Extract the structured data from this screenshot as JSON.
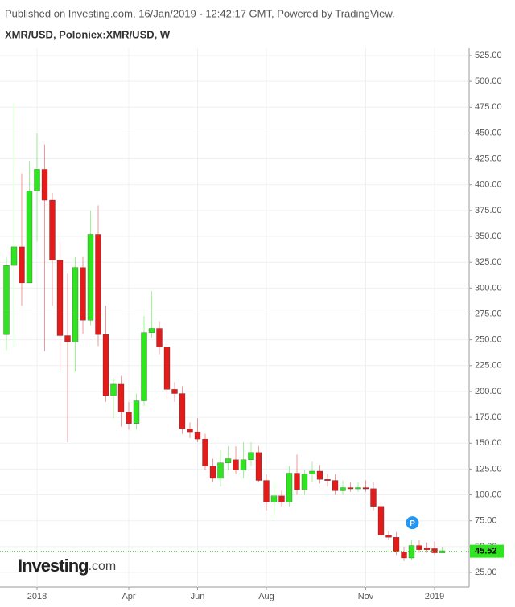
{
  "chart_data": {
    "type": "candlestick",
    "header": "Published on Investing.com, 16/Jan/2019 - 12:42:17 GMT, Powered by TradingView.",
    "title": "XMR/USD, Poloniex:XMR/USD, W",
    "watermark": "Investing",
    "watermark_suffix": ".com",
    "marker": "P",
    "categories": [
      null,
      null,
      null,
      null,
      "2018",
      null,
      null,
      null,
      null,
      null,
      null,
      null,
      null,
      null,
      null,
      null,
      "Apr",
      null,
      null,
      null,
      null,
      null,
      null,
      null,
      null,
      "Jun",
      null,
      null,
      null,
      null,
      null,
      null,
      null,
      null,
      "Aug",
      null,
      null,
      null,
      null,
      null,
      null,
      null,
      null,
      null,
      null,
      null,
      null,
      "Nov",
      null,
      null,
      null,
      null,
      null,
      null,
      null,
      null,
      "2019",
      null
    ],
    "open": [
      255,
      322,
      340,
      305,
      394,
      415,
      385,
      327,
      254,
      248,
      320,
      269,
      352,
      255,
      196,
      207,
      180,
      169,
      191,
      257,
      261,
      243,
      202,
      198,
      164,
      161,
      154,
      128,
      116,
      131,
      134,
      124,
      134,
      141,
      114,
      93,
      99,
      93,
      121,
      105,
      120,
      123,
      115,
      114,
      104,
      107,
      106,
      107,
      106,
      89,
      61,
      59,
      45,
      39,
      51,
      49,
      48,
      44
    ],
    "high": [
      330,
      479,
      411,
      423,
      450,
      439,
      392,
      345,
      314,
      330,
      330,
      375,
      380,
      283,
      213,
      215,
      190,
      198,
      273,
      297,
      268,
      246,
      209,
      205,
      170,
      174,
      159,
      135,
      143,
      147,
      147,
      151,
      151,
      147,
      120,
      112,
      104,
      128,
      139,
      124,
      132,
      129,
      120,
      120,
      114,
      112,
      112,
      114,
      112,
      93,
      65,
      64,
      50,
      56,
      56,
      54,
      55,
      50
    ],
    "low": [
      240,
      244,
      283,
      305,
      345,
      239,
      283,
      221,
      151,
      219,
      256,
      264,
      244,
      190,
      174,
      166,
      163,
      163,
      186,
      252,
      236,
      193,
      190,
      159,
      155,
      151,
      124,
      112,
      108,
      124,
      120,
      116,
      128,
      112,
      85,
      77,
      89,
      89,
      100,
      100,
      112,
      111,
      108,
      100,
      100,
      103,
      103,
      103,
      85,
      59,
      56,
      42,
      36,
      37,
      44,
      44,
      42,
      44
    ],
    "close": [
      322,
      340,
      305,
      394,
      415,
      385,
      327,
      254,
      248,
      320,
      269,
      352,
      255,
      196,
      207,
      180,
      169,
      191,
      257,
      261,
      243,
      202,
      198,
      164,
      161,
      154,
      128,
      116,
      131,
      135,
      124,
      134,
      141,
      114,
      93,
      99,
      93,
      121,
      105,
      120,
      123,
      115,
      114,
      104,
      107,
      106,
      107,
      106,
      89,
      61,
      59,
      45,
      39,
      51,
      47,
      47,
      44,
      46
    ],
    "up_color": "#2ee51f",
    "down_color": "#e31b1b",
    "last_price": 45.52,
    "last_price_color": "#2ee51f",
    "ylim": [
      11,
      532
    ],
    "yticks": [
      {
        "value": 25,
        "label": "25.00"
      },
      {
        "value": 50,
        "label": "50.00"
      },
      {
        "value": 75,
        "label": "75.00"
      },
      {
        "value": 100,
        "label": "100.00"
      },
      {
        "value": 125,
        "label": "125.00"
      },
      {
        "value": 150,
        "label": "150.00"
      },
      {
        "value": 175,
        "label": "175.00"
      },
      {
        "value": 200,
        "label": "200.00"
      },
      {
        "value": 225,
        "label": "225.00"
      },
      {
        "value": 250,
        "label": "250.00"
      },
      {
        "value": 275,
        "label": "275.00"
      },
      {
        "value": 300,
        "label": "300.00"
      },
      {
        "value": 325,
        "label": "325.00"
      },
      {
        "value": 350,
        "label": "350.00"
      },
      {
        "value": 375,
        "label": "375.00"
      },
      {
        "value": 400,
        "label": "400.00"
      },
      {
        "value": 425,
        "label": "425.00"
      },
      {
        "value": 450,
        "label": "450.00"
      },
      {
        "value": 475,
        "label": "475.00"
      },
      {
        "value": 500,
        "label": "500.00"
      },
      {
        "value": 525,
        "label": "525.00"
      }
    ],
    "grid": true
  }
}
